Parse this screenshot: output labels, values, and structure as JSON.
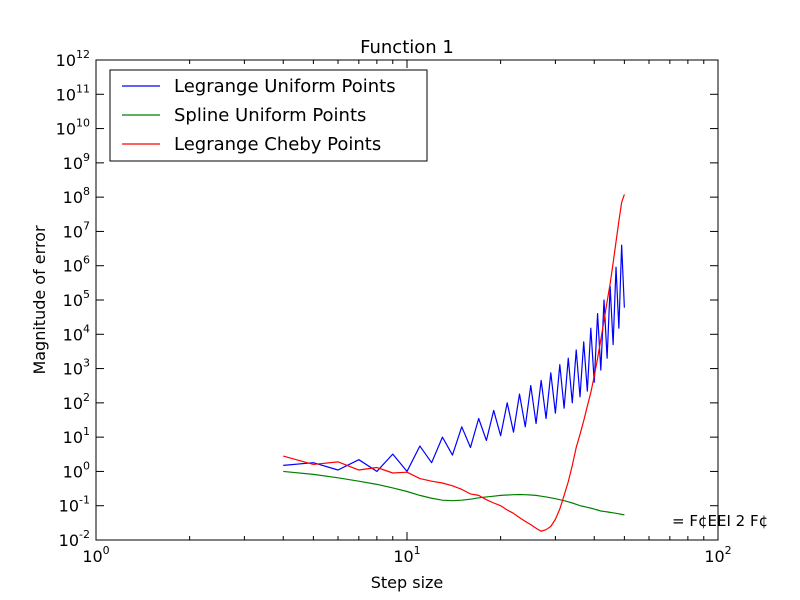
{
  "chart_data": {
    "type": "line",
    "title": "Function 1",
    "xlabel": "Step size",
    "ylabel": "Magnitude of error",
    "xscale": "log",
    "yscale": "log",
    "xlim": [
      1,
      100
    ],
    "ylim": [
      0.01,
      1000000000000
    ],
    "grid": false,
    "legend_placement": "upper-left",
    "x_ticks": [
      {
        "value": 1,
        "mant": "10",
        "exp": "0"
      },
      {
        "value": 10,
        "mant": "10",
        "exp": "1"
      },
      {
        "value": 100,
        "mant": "10",
        "exp": "2"
      }
    ],
    "y_ticks": [
      {
        "value": 0.01,
        "mant": "10",
        "exp": "-2"
      },
      {
        "value": 0.1,
        "mant": "10",
        "exp": "-1"
      },
      {
        "value": 1,
        "mant": "10",
        "exp": "0"
      },
      {
        "value": 10,
        "mant": "10",
        "exp": "1"
      },
      {
        "value": 100,
        "mant": "10",
        "exp": "2"
      },
      {
        "value": 1000,
        "mant": "10",
        "exp": "3"
      },
      {
        "value": 10000,
        "mant": "10",
        "exp": "4"
      },
      {
        "value": 100000,
        "mant": "10",
        "exp": "5"
      },
      {
        "value": 1000000,
        "mant": "10",
        "exp": "6"
      },
      {
        "value": 10000000,
        "mant": "10",
        "exp": "7"
      },
      {
        "value": 100000000,
        "mant": "10",
        "exp": "8"
      },
      {
        "value": 1000000000,
        "mant": "10",
        "exp": "9"
      },
      {
        "value": 10000000000,
        "mant": "10",
        "exp": "10"
      },
      {
        "value": 100000000000,
        "mant": "10",
        "exp": "11"
      },
      {
        "value": 1000000000000,
        "mant": "10",
        "exp": "12"
      }
    ],
    "x": [
      4,
      5,
      6,
      7,
      8,
      9,
      10,
      11,
      12,
      13,
      14,
      15,
      16,
      17,
      18,
      19,
      20,
      21,
      22,
      23,
      24,
      25,
      26,
      27,
      28,
      29,
      30,
      31,
      32,
      33,
      34,
      35,
      36,
      37,
      38,
      39,
      40,
      41,
      42,
      43,
      44,
      45,
      46,
      47,
      48,
      49,
      50
    ],
    "series": [
      {
        "name": "Legrange Uniform Points",
        "color": "#0000ff",
        "values": [
          1.5,
          1.8,
          1.1,
          2.2,
          1.0,
          3.2,
          1.0,
          5.5,
          1.8,
          10,
          3,
          20,
          5,
          35,
          8,
          60,
          11,
          100,
          14,
          180,
          20,
          320,
          25,
          450,
          35,
          750,
          50,
          1300,
          70,
          2000,
          100,
          3500,
          150,
          6000,
          220,
          15000,
          400,
          40000,
          900,
          100000,
          2000,
          250000,
          5000,
          900000,
          15000,
          4000000,
          60000
        ]
      },
      {
        "name": "Spline Uniform Points",
        "color": "#008000",
        "values": [
          1.0,
          0.82,
          0.65,
          0.52,
          0.42,
          0.33,
          0.26,
          0.2,
          0.165,
          0.145,
          0.14,
          0.145,
          0.155,
          0.17,
          0.18,
          0.19,
          0.2,
          0.205,
          0.21,
          0.212,
          0.21,
          0.205,
          0.2,
          0.19,
          0.18,
          0.17,
          0.16,
          0.15,
          0.14,
          0.13,
          0.12,
          0.11,
          0.1,
          0.095,
          0.09,
          0.085,
          0.08,
          0.075,
          0.07,
          0.068,
          0.066,
          0.064,
          0.062,
          0.06,
          0.058,
          0.056,
          0.054
        ]
      },
      {
        "name": "Legrange Cheby Points",
        "color": "#ff0000",
        "values": [
          2.8,
          1.6,
          1.9,
          1.1,
          1.3,
          0.9,
          0.95,
          0.62,
          0.52,
          0.46,
          0.38,
          0.3,
          0.22,
          0.2,
          0.15,
          0.12,
          0.1,
          0.075,
          0.06,
          0.045,
          0.035,
          0.028,
          0.022,
          0.018,
          0.02,
          0.025,
          0.04,
          0.08,
          0.2,
          0.5,
          1.5,
          5,
          12,
          30,
          80,
          200,
          600,
          2000,
          7000,
          25000,
          90000,
          300000,
          1200000,
          5000000,
          20000000,
          70000000,
          120000000
        ]
      }
    ],
    "annotation": "= F¢EEI 2 F¢"
  }
}
